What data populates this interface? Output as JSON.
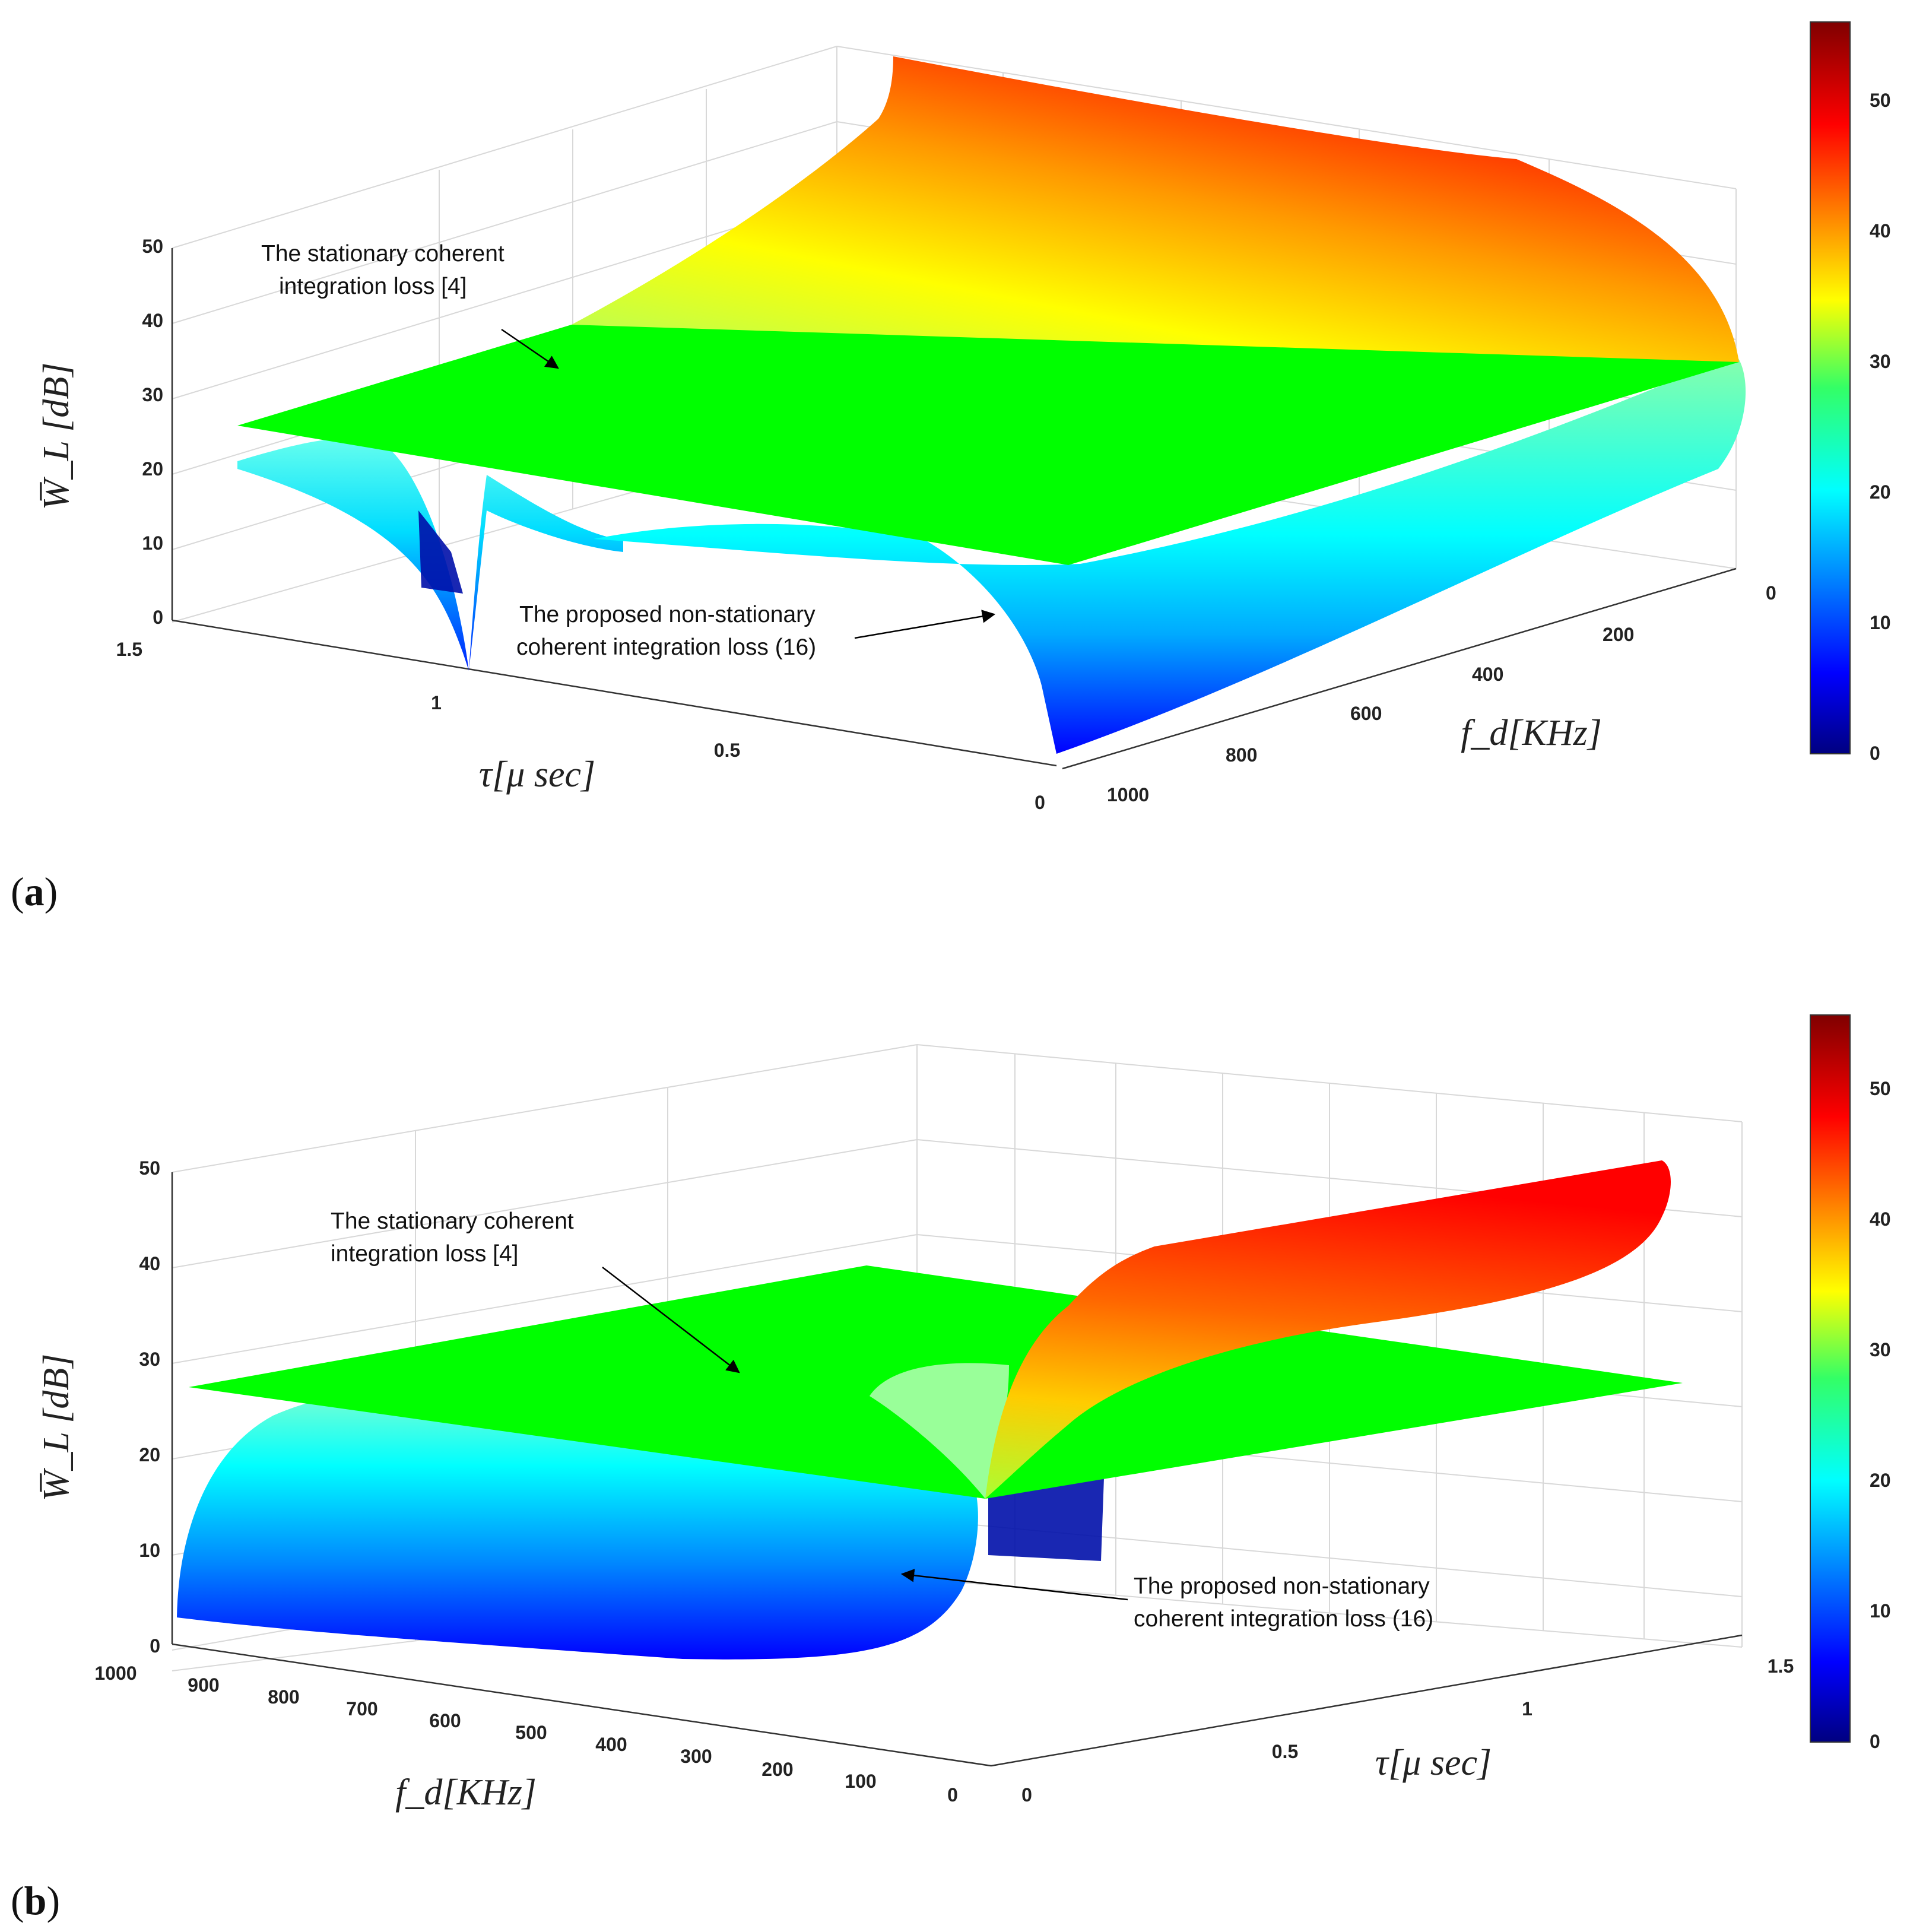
{
  "figure": {
    "panel_label_a": "a",
    "panel_label_b": "b"
  },
  "chart_data": [
    {
      "type": "surface",
      "panel": "a",
      "zlabel": "W̅_L [dB]",
      "xlabel": "τ[μ sec]",
      "ylabel": "f_d[KHz]",
      "z_ticks": [
        "0",
        "10",
        "20",
        "30",
        "40",
        "50"
      ],
      "tau_ticks": [
        "1.5",
        "1",
        "0.5",
        "0"
      ],
      "fd_ticks": [
        "0",
        "200",
        "400",
        "600",
        "800",
        "1000"
      ],
      "zlim": [
        0,
        50
      ],
      "tau_range": [
        0,
        1.5
      ],
      "fd_range": [
        0,
        1000
      ],
      "colorbar": {
        "ticks": [
          "0",
          "10",
          "20",
          "30",
          "40",
          "50"
        ],
        "range": [
          0,
          56
        ],
        "colormap": "jet"
      },
      "series": [
        {
          "name": "The stationary coherent integration loss [4]",
          "kind": "plane",
          "z_value": 27,
          "color": "#00ff00"
        },
        {
          "name": "The proposed non-stationary coherent integration loss (16)",
          "kind": "surface",
          "z_range": [
            0,
            56
          ],
          "zero_at_tau": 1
        }
      ],
      "annotations": {
        "stationary_line1": "The stationary coherent",
        "stationary_line2": "integration loss [4]",
        "proposed_line1": "The proposed non-stationary",
        "proposed_line2": "coherent integration loss (16)"
      }
    },
    {
      "type": "surface",
      "panel": "b",
      "zlabel": "W̅_L [dB]",
      "xlabel": "f_d[KHz]",
      "ylabel": "τ[μ sec]",
      "z_ticks": [
        "0",
        "10",
        "20",
        "30",
        "40",
        "50"
      ],
      "fd_ticks": [
        "1000",
        "900",
        "800",
        "700",
        "600",
        "500",
        "400",
        "300",
        "200",
        "100",
        "0"
      ],
      "tau_ticks": [
        "0",
        "0.5",
        "1",
        "1.5"
      ],
      "zlim": [
        0,
        50
      ],
      "tau_range": [
        0,
        1.5
      ],
      "fd_range": [
        0,
        1000
      ],
      "colorbar": {
        "ticks": [
          "0",
          "10",
          "20",
          "30",
          "40",
          "50"
        ],
        "range": [
          0,
          56
        ],
        "colormap": "jet"
      },
      "series": [
        {
          "name": "The stationary coherent integration loss [4]",
          "kind": "plane",
          "z_value": 27,
          "color": "#00ff00"
        },
        {
          "name": "The proposed non-stationary coherent integration loss (16)",
          "kind": "surface",
          "z_range": [
            0,
            56
          ],
          "zero_at_tau": 1
        }
      ],
      "annotations": {
        "stationary_line1": "The stationary coherent",
        "stationary_line2": "integration loss [4]",
        "proposed_line1": "The proposed non-stationary",
        "proposed_line2": "coherent integration loss (16)"
      }
    }
  ],
  "colors": {
    "plane": "#00ff00",
    "axis": "#333333",
    "grid": "#d9d9d9"
  }
}
